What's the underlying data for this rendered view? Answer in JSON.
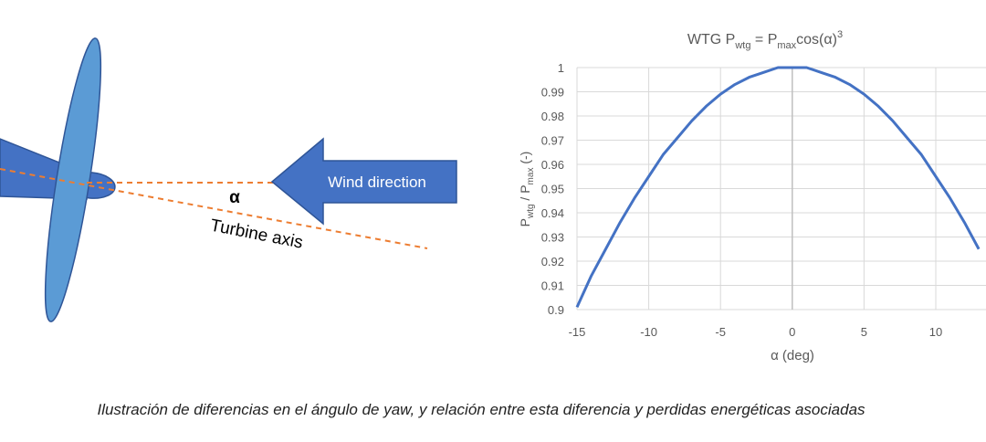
{
  "diagram": {
    "wind_label": "Wind direction",
    "angle_label": "α",
    "axis_label": "Turbine axis"
  },
  "caption": "Ilustración de diferencias en el ángulo de yaw, y relación entre esta diferencia y perdidas energéticas asociadas",
  "chart_data": {
    "type": "line",
    "title": [
      "WTG P",
      "wtg",
      " = P",
      "max",
      "cos(α)",
      "3"
    ],
    "x_label": "α (deg)",
    "y_label": [
      "P",
      "wtg",
      " / P",
      "max",
      " (-)"
    ],
    "x": [
      -15,
      -14,
      -13,
      -12,
      -11,
      -10,
      -9,
      -8,
      -7,
      -6,
      -5,
      -4,
      -3,
      -2,
      -1,
      0,
      1,
      2,
      3,
      4,
      5,
      6,
      7,
      8,
      9,
      10,
      11,
      12,
      13
    ],
    "values": [
      0.901,
      0.914,
      0.925,
      0.936,
      0.946,
      0.955,
      0.964,
      0.971,
      0.978,
      0.984,
      0.989,
      0.993,
      0.996,
      0.998,
      1.0,
      1.0,
      1.0,
      0.998,
      0.996,
      0.993,
      0.989,
      0.984,
      0.978,
      0.971,
      0.964,
      0.955,
      0.946,
      0.936,
      0.925
    ],
    "color": "#4472c4",
    "xlim": [
      -15,
      13.5
    ],
    "xticks": [
      -15,
      -10,
      -5,
      0,
      5,
      10
    ],
    "ylim": [
      0.9,
      1
    ],
    "yticks": [
      0.9,
      0.91,
      0.92,
      0.93,
      0.94,
      0.95,
      0.96,
      0.97,
      0.98,
      0.99,
      1
    ],
    "grid": true
  }
}
